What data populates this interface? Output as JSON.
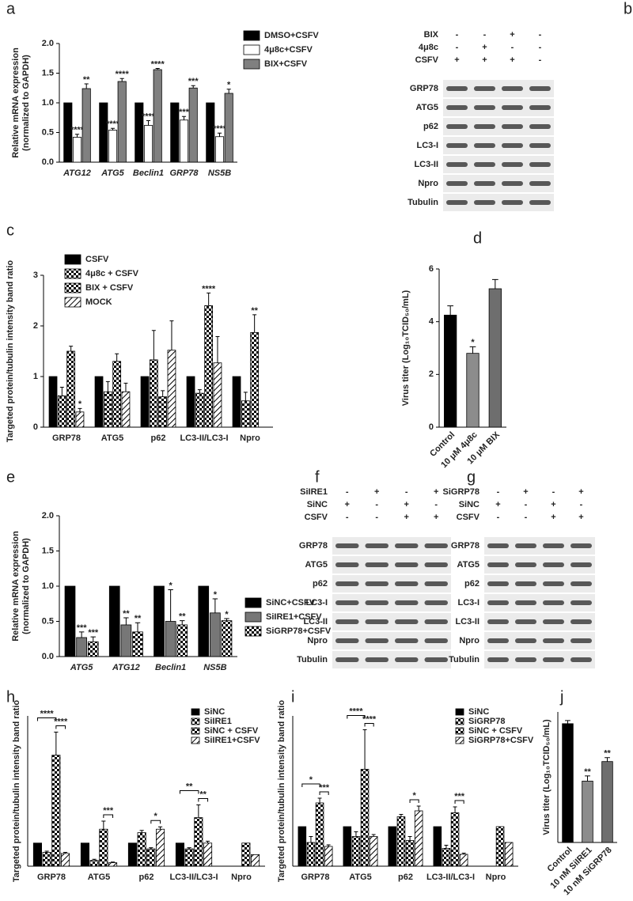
{
  "chart_data": [
    {
      "panel": "a",
      "type": "bar",
      "ylabel": [
        "Relative mRNA expression",
        "(normalized to GAPDH)"
      ],
      "italic_categories": true,
      "categories": [
        "ATG12",
        "ATG5",
        "Beclin1",
        "GRP78",
        "NS5B"
      ],
      "ylim": [
        0,
        2
      ],
      "yticks": [
        {
          "value": 0,
          "label": "0.0"
        },
        {
          "value": 0.5,
          "label": "0.5"
        },
        {
          "value": 1,
          "label": "1.0"
        },
        {
          "value": 1.5,
          "label": "1.5"
        },
        {
          "value": 2,
          "label": "2.0"
        }
      ],
      "series": [
        {
          "name": "DMSO+CSFV",
          "color": "#000000",
          "values": [
            1,
            1,
            1,
            1,
            1
          ]
        },
        {
          "name": "4μ8c+CSFV",
          "color": "#ffffff",
          "values": [
            0.42,
            0.54,
            0.62,
            0.71,
            0.43
          ],
          "errors": [
            0.05,
            0.03,
            0.08,
            0.06,
            0.06
          ],
          "annotations": [
            "****",
            "****",
            "****",
            "***",
            "****"
          ]
        },
        {
          "name": "BIX+CSFV",
          "color": "#808080",
          "values": [
            1.24,
            1.36,
            1.56,
            1.25,
            1.16
          ],
          "errors": [
            0.08,
            0.05,
            0.02,
            0.04,
            0.07
          ],
          "annotations": [
            "**",
            "****",
            "****",
            "***",
            "*"
          ]
        }
      ]
    },
    {
      "panel": "c",
      "type": "bar",
      "ylabel": [
        "Targeted protein/tubulin intensity band ratio"
      ],
      "categories": [
        "GRP78",
        "ATG5",
        "p62",
        "LC3-II/LC3-I",
        "Npro"
      ],
      "ylim": [
        0,
        3
      ],
      "yticks": [
        0,
        1,
        2,
        3
      ],
      "series": [
        {
          "name": "CSFV",
          "color": "#000000",
          "values": [
            1,
            1,
            1,
            1,
            1
          ]
        },
        {
          "name": "4μ8c + CSFV",
          "color": "#000000",
          "pattern": "checker",
          "values": [
            0.62,
            0.7,
            1.33,
            0.67,
            0.52
          ],
          "errors": [
            0.17,
            0.2,
            0.58,
            0.07,
            0.17
          ]
        },
        {
          "name": "BIX + CSFV",
          "color": "#000000",
          "pattern": "checker",
          "values": [
            1.5,
            1.3,
            0.6,
            2.4,
            1.87
          ],
          "errors": [
            0.1,
            0.15,
            0.12,
            0.25,
            0.35
          ],
          "annotations": [
            null,
            null,
            null,
            "****",
            "**"
          ]
        },
        {
          "name": "MOCK",
          "color": "#000000",
          "pattern": "hatch",
          "values": [
            0.3,
            0.7,
            1.52,
            1.27,
            null
          ],
          "errors": [
            0.07,
            0.17,
            0.58,
            0.52,
            null
          ],
          "annotations": [
            "*",
            null,
            null,
            null,
            null
          ]
        }
      ]
    },
    {
      "panel": "d",
      "type": "bar",
      "ylabel": [
        "Virus titer (Log₁₀TCID₅₀/mL)"
      ],
      "rotate_categories": true,
      "categories": [
        "Control",
        "10 μM 4μ8c",
        "10 μM BIX"
      ],
      "values": [
        4.25,
        2.8,
        5.25
      ],
      "errors": [
        0.35,
        0.25,
        0.35
      ],
      "annotations": [
        null,
        "*",
        null
      ],
      "colors": [
        "#000000",
        "#8c8c8c",
        "#6e6e6e"
      ],
      "ylim": [
        0,
        6
      ],
      "yticks": [
        0,
        2,
        4,
        6
      ]
    },
    {
      "panel": "e",
      "type": "bar",
      "ylabel": [
        "Relative mRNA expression",
        "(normalized to GAPDH)"
      ],
      "italic_categories": true,
      "categories": [
        "ATG5",
        "ATG12",
        "Beclin1",
        "NS5B"
      ],
      "ylim": [
        0,
        2
      ],
      "yticks": [
        {
          "value": 0,
          "label": "0.0"
        },
        {
          "value": 0.5,
          "label": "0.5"
        },
        {
          "value": 1,
          "label": "1.0"
        },
        {
          "value": 1.5,
          "label": "1.5"
        },
        {
          "value": 2,
          "label": "2.0"
        }
      ],
      "series": [
        {
          "name": "SiNC+CSFV",
          "color": "#000000",
          "values": [
            1,
            1,
            1,
            1
          ]
        },
        {
          "name": "SiIRE1+CSFV",
          "color": "#777777",
          "values": [
            0.27,
            0.45,
            0.5,
            0.62
          ],
          "errors": [
            0.08,
            0.1,
            0.45,
            0.2
          ],
          "annotations": [
            "***",
            "**",
            "*",
            "*"
          ]
        },
        {
          "name": "SiGRP78+CSFV",
          "color": "#000000",
          "pattern": "checker",
          "values": [
            0.21,
            0.35,
            0.45,
            0.51
          ],
          "errors": [
            0.07,
            0.13,
            0.06,
            0.03
          ],
          "annotations": [
            "***",
            "**",
            "**",
            "*"
          ]
        }
      ]
    },
    {
      "panel": "h",
      "type": "bar",
      "ylabel": [
        "Targeted protein/tubulin intensity band ratio"
      ],
      "small": true,
      "categories": [
        "GRP78",
        "ATG5",
        "p62",
        "LC3-II/LC3-I",
        "Npro"
      ],
      "ylim": [
        0,
        6.5
      ],
      "series": [
        {
          "name": "SiNC",
          "color": "#000000",
          "values": [
            1,
            1,
            1,
            1,
            null
          ]
        },
        {
          "name": "SiIRE1",
          "color": "#000000",
          "pattern": "checker",
          "values": [
            0.6,
            0.25,
            1.45,
            0.75,
            null
          ],
          "errors": [
            0.05,
            0.05,
            0.1,
            0.05,
            null
          ]
        },
        {
          "name": "SiNC + CSFV",
          "color": "#000000",
          "pattern": "checker",
          "values": [
            4.8,
            1.6,
            0.75,
            2.1,
            1
          ],
          "errors": [
            1,
            0.35,
            0.05,
            0.55,
            null
          ]
        },
        {
          "name": "SiIRE1+CSFV",
          "color": "#000000",
          "pattern": "hatch",
          "values": [
            0.55,
            0.15,
            1.6,
            1,
            0.5
          ],
          "errors": [
            0.05,
            0.03,
            0.1,
            0.08,
            null
          ]
        }
      ],
      "brackets": [
        {
          "category": 0,
          "series": [
            0,
            2
          ],
          "label": "****"
        },
        {
          "category": 0,
          "series": [
            2,
            3
          ],
          "label": "****"
        },
        {
          "category": 1,
          "series": [
            2,
            3
          ],
          "label": "***"
        },
        {
          "category": 2,
          "series": [
            2,
            3
          ],
          "label": "*"
        },
        {
          "category": 3,
          "series": [
            0,
            2
          ],
          "label": "**"
        },
        {
          "category": 3,
          "series": [
            2,
            3
          ],
          "label": "**"
        }
      ]
    },
    {
      "panel": "i",
      "type": "bar",
      "ylabel": [
        "Targeted protein/tubulin intensity band ratio"
      ],
      "small": true,
      "categories": [
        "GRP78",
        "ATG5",
        "p62",
        "LC3-II/LC3-I",
        "Npro"
      ],
      "ylim": [
        0,
        3.8
      ],
      "series": [
        {
          "name": "SiNC",
          "color": "#000000",
          "values": [
            1,
            1,
            1,
            1,
            null
          ]
        },
        {
          "name": "SiGRP78",
          "color": "#000000",
          "pattern": "checker",
          "values": [
            0.6,
            0.75,
            1.25,
            0.45,
            null
          ],
          "errors": [
            0.15,
            0.12,
            0.06,
            0.08,
            null
          ]
        },
        {
          "name": "SiNC + CSFV",
          "color": "#000000",
          "pattern": "checker",
          "values": [
            1.6,
            2.45,
            0.65,
            1.35,
            1
          ],
          "errors": [
            0.12,
            1,
            0.1,
            0.15,
            null
          ]
        },
        {
          "name": "SiGRP78+CSFV",
          "color": "#000000",
          "pattern": "hatch",
          "values": [
            0.5,
            0.75,
            1.4,
            0.3,
            0.6
          ],
          "errors": [
            0.04,
            0.05,
            0.12,
            0.03,
            null
          ]
        }
      ],
      "brackets": [
        {
          "category": 0,
          "series": [
            0,
            2
          ],
          "label": "*"
        },
        {
          "category": 0,
          "series": [
            2,
            3
          ],
          "label": "***"
        },
        {
          "category": 1,
          "series": [
            0,
            2
          ],
          "label": "****"
        },
        {
          "category": 1,
          "series": [
            2,
            3
          ],
          "label": "****"
        },
        {
          "category": 2,
          "series": [
            2,
            3
          ],
          "label": "*"
        },
        {
          "category": 3,
          "series": [
            2,
            3
          ],
          "label": "***"
        }
      ]
    },
    {
      "panel": "j",
      "type": "bar",
      "ylabel": [
        "Virus titer (Log₁₀TCID₅₀/mL)"
      ],
      "rotate_categories": true,
      "small": true,
      "categories": [
        "Control",
        "10 nM SiIRE1",
        "10 nM SiGRP78"
      ],
      "values": [
        4.55,
        2.35,
        3.1
      ],
      "errors": [
        0.12,
        0.2,
        0.15
      ],
      "annotations": [
        null,
        "**",
        "**"
      ],
      "colors": [
        "#000000",
        "#8c8c8c",
        "#6e6e6e"
      ],
      "ylim": [
        0,
        5
      ]
    }
  ],
  "blots": [
    {
      "panel": "b",
      "conditions": [
        {
          "name": "BIX",
          "signs": [
            "-",
            "-",
            "+",
            "-"
          ]
        },
        {
          "name": "4μ8c",
          "signs": [
            "-",
            "+",
            "-",
            "-"
          ]
        },
        {
          "name": "CSFV",
          "signs": [
            "+",
            "+",
            "+",
            "-"
          ]
        }
      ],
      "bands": [
        "GRP78",
        "ATG5",
        "p62",
        "LC3-I",
        "LC3-II",
        "Npro",
        "Tubulin"
      ]
    },
    {
      "panel": "f",
      "conditions": [
        {
          "name": "SiIRE1",
          "signs": [
            "-",
            "+",
            "-",
            "+"
          ]
        },
        {
          "name": "SiNC",
          "signs": [
            "+",
            "-",
            "+",
            "-"
          ]
        },
        {
          "name": "CSFV",
          "signs": [
            "-",
            "-",
            "+",
            "+"
          ]
        }
      ],
      "bands": [
        "GRP78",
        "ATG5",
        "p62",
        "LC3-I",
        "LC3-II",
        "Npro",
        "Tubulin"
      ]
    },
    {
      "panel": "g",
      "conditions": [
        {
          "name": "SiGRP78",
          "signs": [
            "-",
            "+",
            "-",
            "+"
          ]
        },
        {
          "name": "SiNC",
          "signs": [
            "+",
            "-",
            "+",
            "-"
          ]
        },
        {
          "name": "CSFV",
          "signs": [
            "-",
            "-",
            "+",
            "+"
          ]
        }
      ],
      "bands": [
        "GRP78",
        "ATG5",
        "p62",
        "LC3-I",
        "LC3-II",
        "Npro",
        "Tubulin"
      ]
    }
  ]
}
